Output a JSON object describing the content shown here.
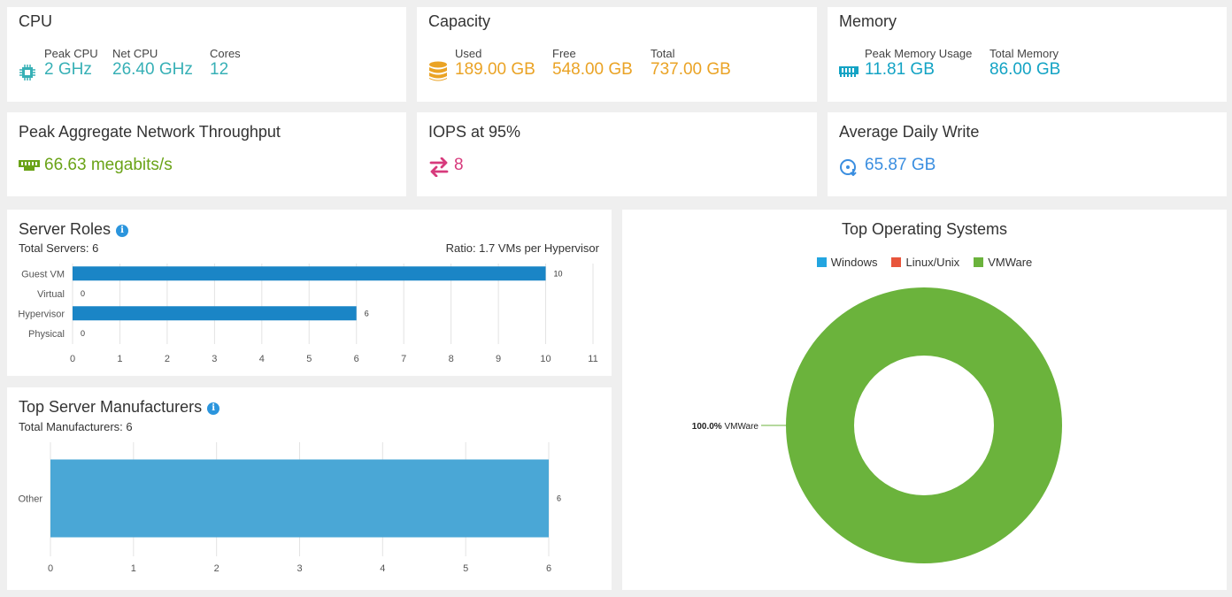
{
  "cpu": {
    "title": "CPU",
    "peak_label": "Peak CPU",
    "peak_value": "2 GHz",
    "net_label": "Net CPU",
    "net_value": "26.40 GHz",
    "cores_label": "Cores",
    "cores_value": "12",
    "icon": "cpu-chip-icon",
    "color": "#37b0b6"
  },
  "capacity": {
    "title": "Capacity",
    "used_label": "Used",
    "used_value": "189.00 GB",
    "free_label": "Free",
    "free_value": "548.00 GB",
    "total_label": "Total",
    "total_value": "737.00 GB",
    "icon": "database-icon",
    "color": "#eaa325"
  },
  "memory": {
    "title": "Memory",
    "peak_label": "Peak Memory Usage",
    "peak_value": "11.81 GB",
    "total_label": "Total Memory",
    "total_value": "86.00 GB",
    "icon": "memory-module-icon",
    "color": "#13a3c4"
  },
  "network": {
    "title": "Peak Aggregate Network Throughput",
    "value": "66.63 megabits/s",
    "icon": "network-port-icon",
    "color": "#6aa317"
  },
  "iops": {
    "title": "IOPS at 95%",
    "value": "8",
    "icon": "exchange-arrows-icon",
    "color": "#d73a7c"
  },
  "daily_write": {
    "title": "Average Daily Write",
    "value": "65.87 GB",
    "icon": "disk-write-icon",
    "color": "#3a8ee0"
  },
  "server_roles": {
    "title": "Server Roles",
    "subtitle": "Total Servers: 6",
    "ratio": "Ratio: 1.7 VMs per Hypervisor",
    "chart_data": {
      "type": "bar",
      "orientation": "horizontal",
      "categories": [
        "Guest VM",
        "Virtual",
        "Hypervisor",
        "Physical"
      ],
      "values": [
        10,
        0,
        6,
        0
      ],
      "xlim": [
        0,
        11
      ],
      "ticks": [
        "0",
        "1",
        "2",
        "3",
        "4",
        "5",
        "6",
        "7",
        "8",
        "9",
        "10",
        "11"
      ],
      "grid": true,
      "color": "#1a85c6"
    }
  },
  "manufacturers": {
    "title": "Top Server Manufacturers",
    "subtitle": "Total Manufacturers: 6",
    "chart_data": {
      "type": "bar",
      "orientation": "horizontal",
      "categories": [
        "Other"
      ],
      "values": [
        6
      ],
      "xlim": [
        0,
        6
      ],
      "ticks": [
        "0",
        "1",
        "2",
        "3",
        "4",
        "5",
        "6"
      ],
      "grid": true,
      "color": "#4aa7d6"
    }
  },
  "operating_systems": {
    "title": "Top Operating Systems",
    "legend": [
      {
        "name": "Windows",
        "color": "#23a5e0"
      },
      {
        "name": "Linux/Unix",
        "color": "#e8553c"
      },
      {
        "name": "VMWare",
        "color": "#6bb33c"
      }
    ],
    "chart_data": {
      "type": "pie",
      "donut": true,
      "categories": [
        "Windows",
        "Linux/Unix",
        "VMWare"
      ],
      "values": [
        0,
        0,
        100
      ],
      "labels": [
        {
          "percent": "100.0%",
          "name": "VMWare"
        }
      ]
    }
  }
}
